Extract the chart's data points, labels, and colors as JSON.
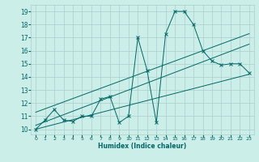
{
  "xlabel": "Humidex (Indice chaleur)",
  "bg_color": "#cceee8",
  "grid_color": "#aacccc",
  "line_color": "#006666",
  "xlim": [
    -0.5,
    23.5
  ],
  "ylim": [
    9.6,
    19.5
  ],
  "xticks": [
    0,
    1,
    2,
    3,
    4,
    5,
    6,
    7,
    8,
    9,
    10,
    11,
    12,
    13,
    14,
    15,
    16,
    17,
    18,
    19,
    20,
    21,
    22,
    23
  ],
  "yticks": [
    10,
    11,
    12,
    13,
    14,
    15,
    16,
    17,
    18,
    19
  ],
  "x_data": [
    0,
    1,
    2,
    3,
    4,
    5,
    6,
    7,
    8,
    9,
    10,
    11,
    12,
    13,
    14,
    15,
    16,
    17,
    18,
    19,
    20,
    21,
    22,
    23
  ],
  "y_data": [
    10.0,
    10.7,
    11.5,
    10.7,
    10.6,
    11.0,
    11.0,
    12.3,
    12.5,
    10.5,
    11.0,
    17.0,
    14.5,
    10.5,
    17.3,
    19.0,
    19.0,
    18.0,
    16.0,
    15.2,
    14.9,
    15.0,
    15.0,
    14.3
  ],
  "trend1_x": [
    0,
    23
  ],
  "trend1_y": [
    10.0,
    14.2
  ],
  "trend2_x": [
    0,
    23
  ],
  "trend2_y": [
    10.3,
    16.5
  ],
  "trend3_x": [
    0,
    23
  ],
  "trend3_y": [
    11.3,
    17.3
  ]
}
